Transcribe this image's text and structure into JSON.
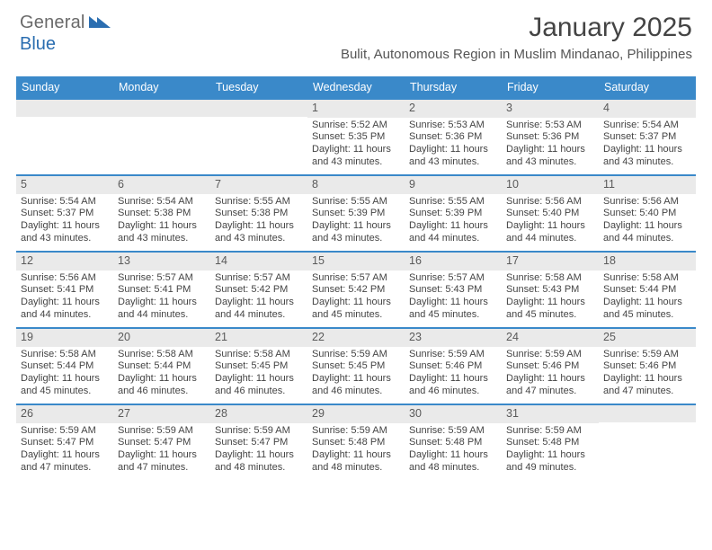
{
  "brand": {
    "name_gray": "General",
    "name_blue": "Blue"
  },
  "title": "January 2025",
  "location": "Bulit, Autonomous Region in Muslim Mindanao, Philippines",
  "colors": {
    "header_bar": "#3a89c9",
    "header_text": "#ffffff",
    "daynum_bg": "#eaeaea",
    "week_border": "#3a89c9",
    "body_text": "#444444",
    "logo_gray": "#6a6a6a",
    "logo_blue": "#2a6db0"
  },
  "weekdays": [
    "Sunday",
    "Monday",
    "Tuesday",
    "Wednesday",
    "Thursday",
    "Friday",
    "Saturday"
  ],
  "weeks": [
    [
      null,
      null,
      null,
      {
        "n": "1",
        "sr": "5:52 AM",
        "ss": "5:35 PM",
        "dl": "11 hours",
        "dm": "43 minutes."
      },
      {
        "n": "2",
        "sr": "5:53 AM",
        "ss": "5:36 PM",
        "dl": "11 hours",
        "dm": "43 minutes."
      },
      {
        "n": "3",
        "sr": "5:53 AM",
        "ss": "5:36 PM",
        "dl": "11 hours",
        "dm": "43 minutes."
      },
      {
        "n": "4",
        "sr": "5:54 AM",
        "ss": "5:37 PM",
        "dl": "11 hours",
        "dm": "43 minutes."
      }
    ],
    [
      {
        "n": "5",
        "sr": "5:54 AM",
        "ss": "5:37 PM",
        "dl": "11 hours",
        "dm": "43 minutes."
      },
      {
        "n": "6",
        "sr": "5:54 AM",
        "ss": "5:38 PM",
        "dl": "11 hours",
        "dm": "43 minutes."
      },
      {
        "n": "7",
        "sr": "5:55 AM",
        "ss": "5:38 PM",
        "dl": "11 hours",
        "dm": "43 minutes."
      },
      {
        "n": "8",
        "sr": "5:55 AM",
        "ss": "5:39 PM",
        "dl": "11 hours",
        "dm": "43 minutes."
      },
      {
        "n": "9",
        "sr": "5:55 AM",
        "ss": "5:39 PM",
        "dl": "11 hours",
        "dm": "44 minutes."
      },
      {
        "n": "10",
        "sr": "5:56 AM",
        "ss": "5:40 PM",
        "dl": "11 hours",
        "dm": "44 minutes."
      },
      {
        "n": "11",
        "sr": "5:56 AM",
        "ss": "5:40 PM",
        "dl": "11 hours",
        "dm": "44 minutes."
      }
    ],
    [
      {
        "n": "12",
        "sr": "5:56 AM",
        "ss": "5:41 PM",
        "dl": "11 hours",
        "dm": "44 minutes."
      },
      {
        "n": "13",
        "sr": "5:57 AM",
        "ss": "5:41 PM",
        "dl": "11 hours",
        "dm": "44 minutes."
      },
      {
        "n": "14",
        "sr": "5:57 AM",
        "ss": "5:42 PM",
        "dl": "11 hours",
        "dm": "44 minutes."
      },
      {
        "n": "15",
        "sr": "5:57 AM",
        "ss": "5:42 PM",
        "dl": "11 hours",
        "dm": "45 minutes."
      },
      {
        "n": "16",
        "sr": "5:57 AM",
        "ss": "5:43 PM",
        "dl": "11 hours",
        "dm": "45 minutes."
      },
      {
        "n": "17",
        "sr": "5:58 AM",
        "ss": "5:43 PM",
        "dl": "11 hours",
        "dm": "45 minutes."
      },
      {
        "n": "18",
        "sr": "5:58 AM",
        "ss": "5:44 PM",
        "dl": "11 hours",
        "dm": "45 minutes."
      }
    ],
    [
      {
        "n": "19",
        "sr": "5:58 AM",
        "ss": "5:44 PM",
        "dl": "11 hours",
        "dm": "45 minutes."
      },
      {
        "n": "20",
        "sr": "5:58 AM",
        "ss": "5:44 PM",
        "dl": "11 hours",
        "dm": "46 minutes."
      },
      {
        "n": "21",
        "sr": "5:58 AM",
        "ss": "5:45 PM",
        "dl": "11 hours",
        "dm": "46 minutes."
      },
      {
        "n": "22",
        "sr": "5:59 AM",
        "ss": "5:45 PM",
        "dl": "11 hours",
        "dm": "46 minutes."
      },
      {
        "n": "23",
        "sr": "5:59 AM",
        "ss": "5:46 PM",
        "dl": "11 hours",
        "dm": "46 minutes."
      },
      {
        "n": "24",
        "sr": "5:59 AM",
        "ss": "5:46 PM",
        "dl": "11 hours",
        "dm": "47 minutes."
      },
      {
        "n": "25",
        "sr": "5:59 AM",
        "ss": "5:46 PM",
        "dl": "11 hours",
        "dm": "47 minutes."
      }
    ],
    [
      {
        "n": "26",
        "sr": "5:59 AM",
        "ss": "5:47 PM",
        "dl": "11 hours",
        "dm": "47 minutes."
      },
      {
        "n": "27",
        "sr": "5:59 AM",
        "ss": "5:47 PM",
        "dl": "11 hours",
        "dm": "47 minutes."
      },
      {
        "n": "28",
        "sr": "5:59 AM",
        "ss": "5:47 PM",
        "dl": "11 hours",
        "dm": "48 minutes."
      },
      {
        "n": "29",
        "sr": "5:59 AM",
        "ss": "5:48 PM",
        "dl": "11 hours",
        "dm": "48 minutes."
      },
      {
        "n": "30",
        "sr": "5:59 AM",
        "ss": "5:48 PM",
        "dl": "11 hours",
        "dm": "48 minutes."
      },
      {
        "n": "31",
        "sr": "5:59 AM",
        "ss": "5:48 PM",
        "dl": "11 hours",
        "dm": "49 minutes."
      },
      null
    ]
  ],
  "labels": {
    "sunrise": "Sunrise:",
    "sunset": "Sunset:",
    "daylight": "Daylight:",
    "and": "and"
  }
}
